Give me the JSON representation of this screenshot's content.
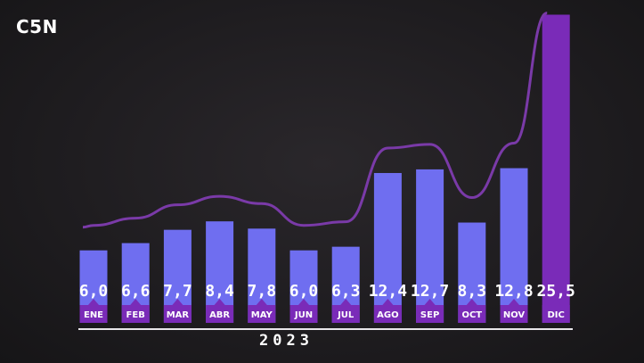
{
  "logo": {
    "text": "C5N"
  },
  "year": "2023",
  "colors": {
    "bar": "#6f6ef0",
    "highlight_bar": "#7a2bb8",
    "month_band": "#7a2bb8",
    "trend_line": "#7a3aa8",
    "axis": "#e8e6ea"
  },
  "chart_data": {
    "type": "bar",
    "title": "",
    "xlabel": "2023",
    "ylabel": "",
    "categories": [
      "ENE",
      "FEB",
      "MAR",
      "ABR",
      "MAY",
      "JUN",
      "JUL",
      "AGO",
      "SEP",
      "OCT",
      "NOV",
      "DIC"
    ],
    "values": [
      6.0,
      6.6,
      7.7,
      8.4,
      7.8,
      6.0,
      6.3,
      12.4,
      12.7,
      8.3,
      12.8,
      25.5
    ],
    "value_labels": [
      "6,0",
      "6,6",
      "7,7",
      "8,4",
      "7,8",
      "6,0",
      "6,3",
      "12,4",
      "12,7",
      "8,3",
      "12,8",
      "25,5"
    ],
    "highlight_index": 11,
    "trend_line": true,
    "grid": false,
    "legend": "none"
  }
}
